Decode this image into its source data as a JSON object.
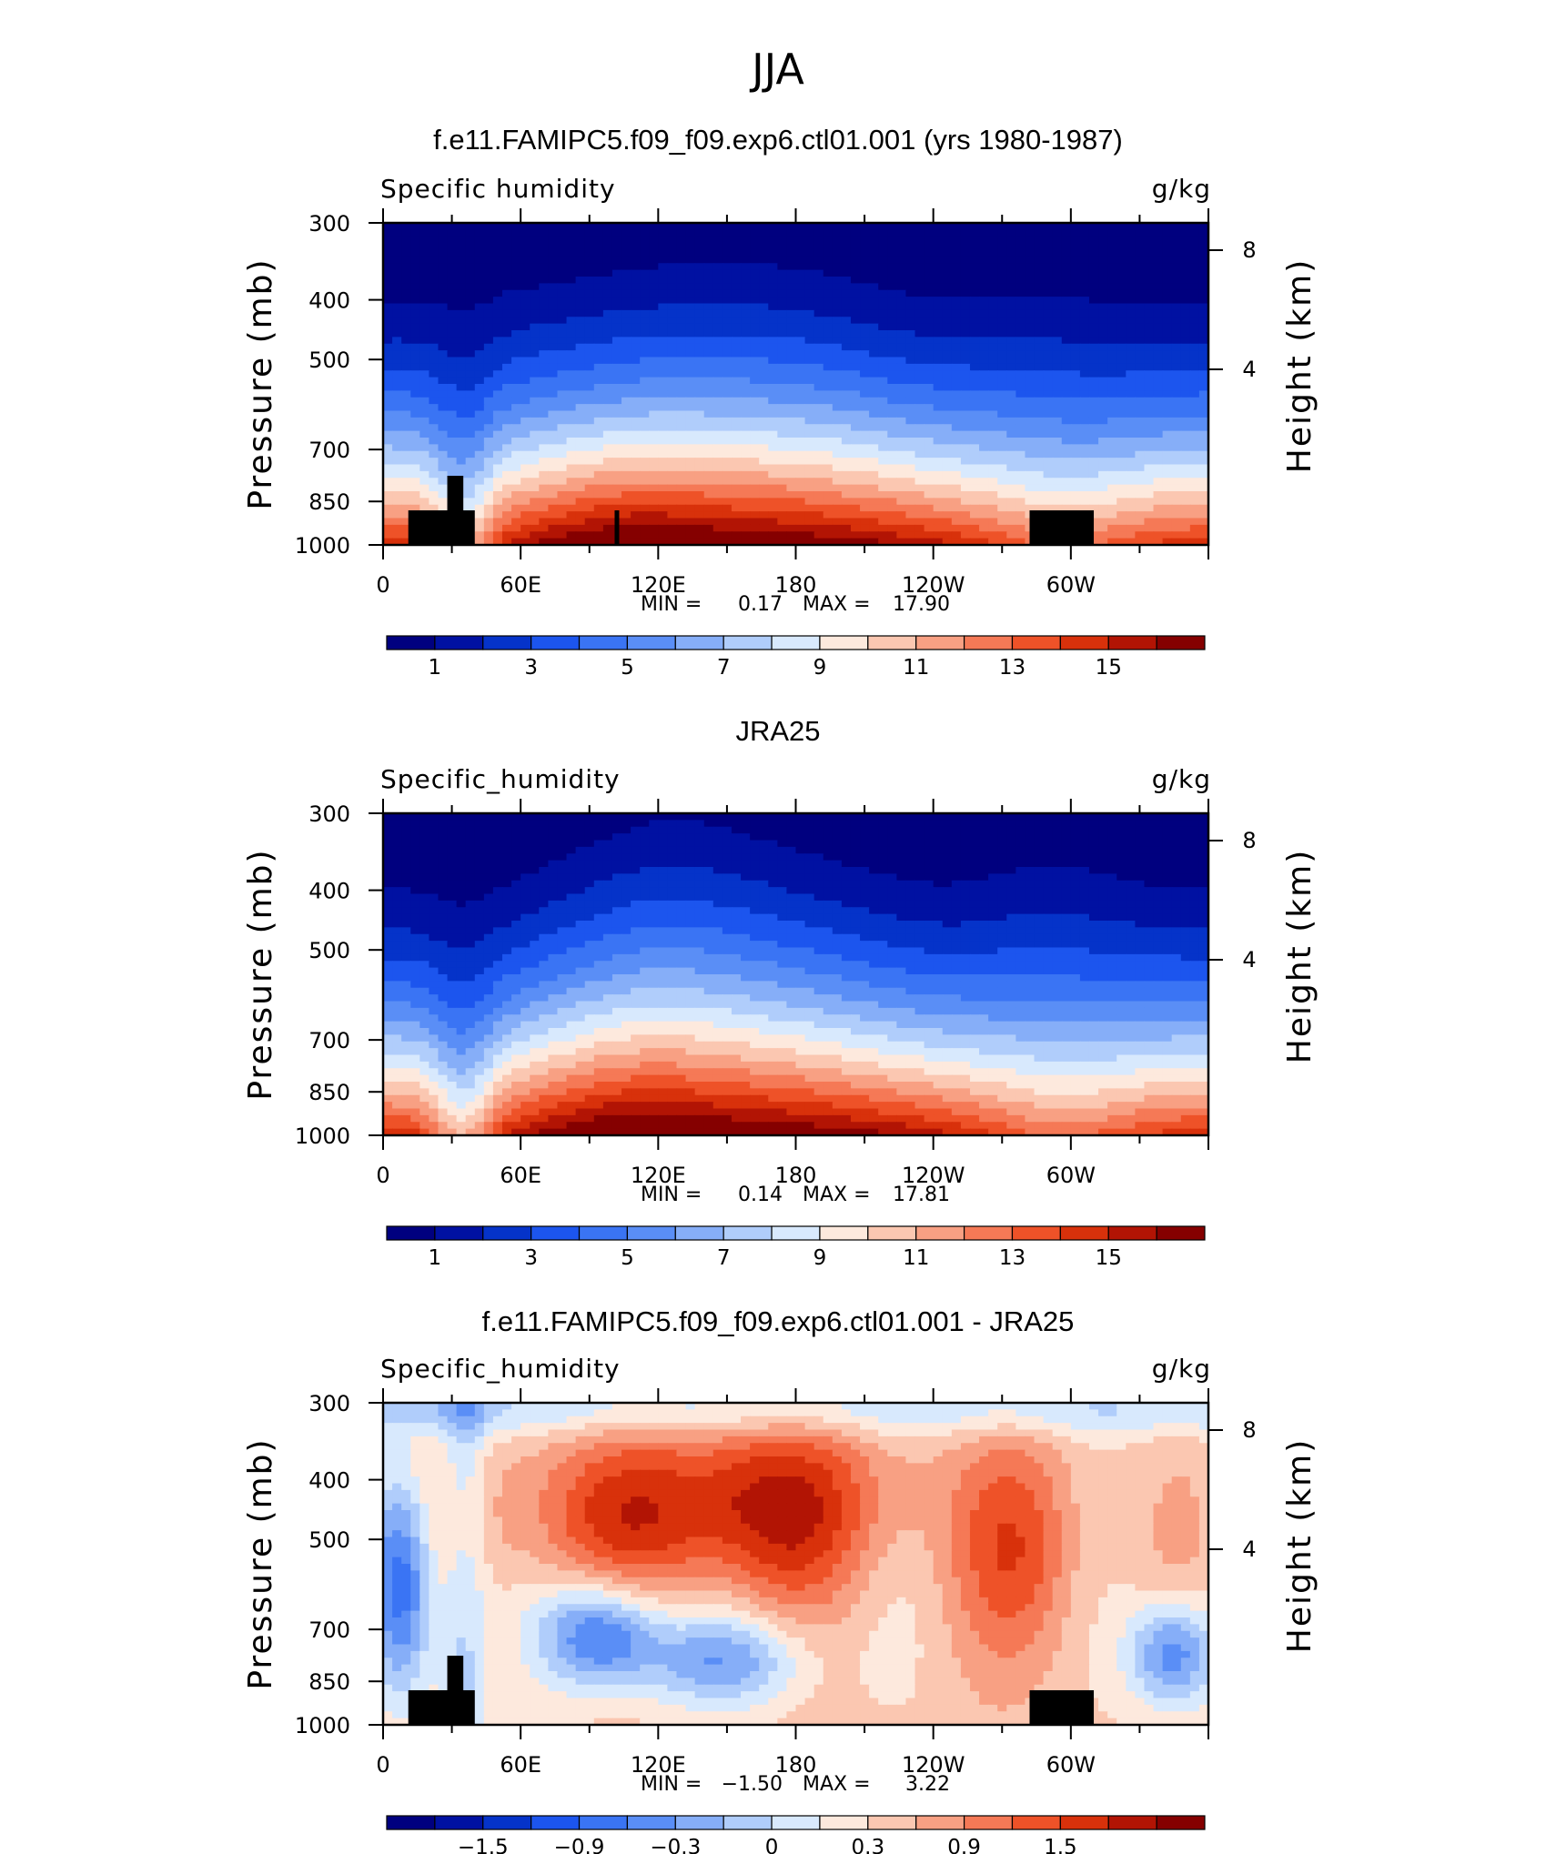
{
  "figure_title": "JJA",
  "colors": {
    "full_palette": [
      "#00007f",
      "#0011a2",
      "#0533c9",
      "#1c55ee",
      "#3a74f4",
      "#5a8ef6",
      "#86aef8",
      "#b0cdfb",
      "#d8e9fd",
      "#fde9dd",
      "#fbc7b1",
      "#f8a083",
      "#f57956",
      "#ee5228",
      "#d8310b",
      "#b21404",
      "#850000"
    ],
    "diff_palette": [
      "#00007f",
      "#0011a2",
      "#0533c9",
      "#1c55ee",
      "#3a74f4",
      "#5a8ef6",
      "#86aef8",
      "#b0cdfb",
      "#d8e9fd",
      "#fde9dd",
      "#fbc7b1",
      "#f8a083",
      "#f57956",
      "#ee5228",
      "#d8310b",
      "#b21404",
      "#850000"
    ],
    "terrain": "#000000"
  },
  "chart_data": [
    {
      "type": "heatmap",
      "title": "f.e11.FAMIPC5.f09_f09.exp6.ctl01.001 (yrs 1980-1987)",
      "left_label": "Specific humidity",
      "units": "g/kg",
      "ylabel": "Pressure (mb)",
      "ylabel_right": "Height (km)",
      "x_ticks": [
        "0",
        "60E",
        "120E",
        "180",
        "120W",
        "60W"
      ],
      "y_ticks": [
        "300",
        "400",
        "500",
        "700",
        "850",
        "1000"
      ],
      "y_ticks_right": [
        "8",
        "4"
      ],
      "min_label": "MIN =",
      "min_value": "0.17",
      "max_label": "MAX =",
      "max_value": "17.90",
      "field": "full",
      "terrain": true,
      "colorbar_labels": [
        "1",
        "3",
        "5",
        "7",
        "9",
        "11",
        "13",
        "15"
      ]
    },
    {
      "type": "heatmap",
      "title": "JRA25",
      "left_label": "Specific_humidity",
      "units": "g/kg",
      "ylabel": "Pressure (mb)",
      "ylabel_right": "Height (km)",
      "x_ticks": [
        "0",
        "60E",
        "120E",
        "180",
        "120W",
        "60W"
      ],
      "y_ticks": [
        "300",
        "400",
        "500",
        "700",
        "850",
        "1000"
      ],
      "y_ticks_right": [
        "8",
        "4"
      ],
      "min_label": "MIN =",
      "min_value": "0.14",
      "max_label": "MAX =",
      "max_value": "17.81",
      "field": "full",
      "terrain": false,
      "colorbar_labels": [
        "1",
        "3",
        "5",
        "7",
        "9",
        "11",
        "13",
        "15"
      ]
    },
    {
      "type": "heatmap",
      "title": "f.e11.FAMIPC5.f09_f09.exp6.ctl01.001 - JRA25",
      "left_label": "Specific_humidity",
      "units": "g/kg",
      "ylabel": "Pressure (mb)",
      "ylabel_right": "Height (km)",
      "x_ticks": [
        "0",
        "60E",
        "120E",
        "180",
        "120W",
        "60W"
      ],
      "y_ticks": [
        "300",
        "400",
        "500",
        "700",
        "850",
        "1000"
      ],
      "y_ticks_right": [
        "8",
        "4"
      ],
      "min_label": "MIN =",
      "min_value": "−1.50",
      "max_label": "MAX =",
      "max_value": "3.22",
      "field": "diff",
      "terrain": true,
      "colorbar_labels": [
        "−1.5",
        "−0.9",
        "−0.3",
        "0",
        "0.3",
        "0.9",
        "1.5"
      ]
    }
  ]
}
